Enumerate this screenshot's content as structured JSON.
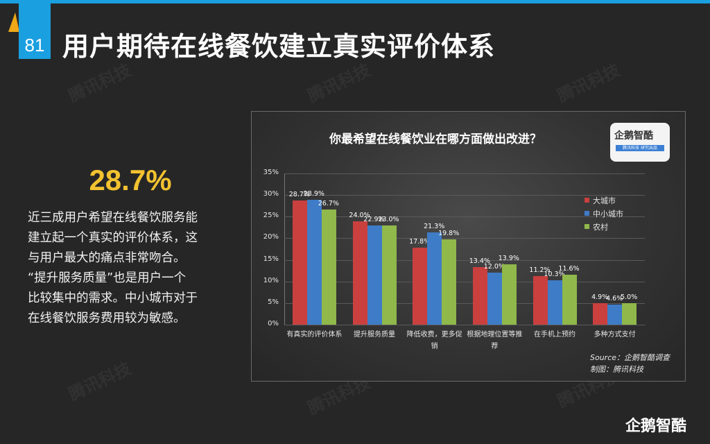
{
  "slide": {
    "page_number": "81",
    "title": "用户期待在线餐饮建立真实评价体系",
    "watermark_text": "腾讯科技",
    "brand_logo": "企鹅智酷"
  },
  "summary": {
    "stat": "28.7%",
    "lines": [
      "近三成用户希望在线餐饮服务能",
      "建立起一个真实的评价体系，这",
      "与用户最大的痛点非常吻合。",
      "“提升服务质量”也是用户一个",
      "比较集中的需求。中小城市对于",
      "在线餐饮服务费用较为敏感。"
    ]
  },
  "chart_logo": {
    "name": "企鹅智酷",
    "tagline": "腾讯科技 研究出品"
  },
  "chart_source": {
    "source": "Source：企鹅智酷调查",
    "credit": "制图：腾讯科技"
  },
  "colors": {
    "大城市": "#c9403f",
    "中小城市": "#3f7cc7",
    "农村": "#90b84a",
    "accent_blue": "#1a9fe0",
    "stat_yellow": "#f2c230"
  },
  "chart_data": {
    "type": "bar",
    "title": "你最希望在线餐饮业在哪方面做出改进？",
    "categories": [
      "有真实的评价体系",
      "提升服务质量",
      "降低收费，更多促销",
      "根据地理位置等推荐",
      "在手机上预约",
      "多种方式支付"
    ],
    "category_display": [
      [
        "有真实的评价体系"
      ],
      [
        "提升服务质量"
      ],
      [
        "降低收费，更多促",
        "销"
      ],
      [
        "根据地理位置等推",
        "荐"
      ],
      [
        "在手机上预约"
      ],
      [
        "多种方式支付"
      ]
    ],
    "series": [
      {
        "name": "大城市",
        "color": "#c9403f",
        "values": [
          28.7,
          24.0,
          17.8,
          13.4,
          11.2,
          4.9
        ]
      },
      {
        "name": "中小城市",
        "color": "#3f7cc7",
        "values": [
          28.9,
          22.9,
          21.3,
          12.0,
          10.3,
          4.6
        ]
      },
      {
        "name": "农村",
        "color": "#90b84a",
        "values": [
          26.7,
          23.0,
          19.8,
          13.9,
          11.6,
          5.0
        ]
      }
    ],
    "xlabel": "",
    "ylabel": "",
    "ylim": [
      0,
      35
    ],
    "yticks": [
      "0%",
      "5%",
      "10%",
      "15%",
      "20%",
      "25%",
      "30%",
      "35%"
    ],
    "grid": true,
    "legend_position": "right",
    "value_format": "percent_1dp"
  }
}
